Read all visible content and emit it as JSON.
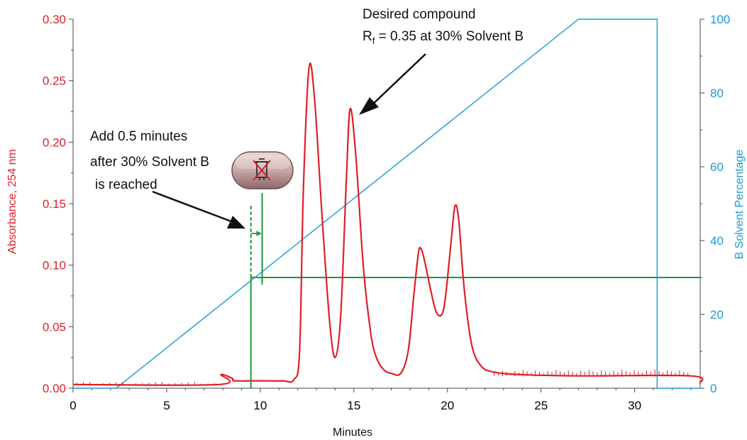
{
  "chart_data": {
    "type": "line",
    "xlabel": "Minutes",
    "ylabel_left": "Absorbance, 254 nm",
    "ylabel_right": "B Solvent Percentage",
    "xlim": [
      0,
      33.5
    ],
    "ylim_left": [
      0,
      0.3
    ],
    "ylim_right": [
      0,
      100
    ],
    "x_ticks": [
      "0",
      "5",
      "10",
      "15",
      "20",
      "25",
      "30"
    ],
    "y_left_ticks": [
      "0.00",
      "0.05",
      "0.10",
      "0.15",
      "0.20",
      "0.25",
      "0.30"
    ],
    "y_right_ticks": [
      "0",
      "20",
      "40",
      "60",
      "80",
      "100"
    ],
    "colors": {
      "absorbance": "#e01e25",
      "gradient": "#1a9ad6",
      "collection": "#1a9a3a",
      "annotation": "#111111"
    },
    "series": [
      {
        "axis": "right",
        "x": [
          0,
          2.3,
          27.0,
          31.2,
          31.2,
          33.5
        ],
        "y": [
          0,
          0,
          100,
          100,
          0,
          0
        ]
      },
      {
        "axis": "left",
        "x": [
          0,
          7.8,
          7.9,
          8.5,
          8.6,
          9.5,
          10,
          11.2,
          11.8,
          12.1,
          12.3,
          12.6,
          12.9,
          13.3,
          13.7,
          14.0,
          14.3,
          14.6,
          14.8,
          15.1,
          15.5,
          15.9,
          16.2,
          16.6,
          17.0,
          17.5,
          17.9,
          18.2,
          18.45,
          18.6,
          18.8,
          19.1,
          19.4,
          19.7,
          19.9,
          20.2,
          20.4,
          20.6,
          20.9,
          21.3,
          21.8,
          22.5,
          24.0,
          27.0,
          33.0,
          33.5
        ],
        "y": [
          0.003,
          0.003,
          0.011,
          0.008,
          0.006,
          0.006,
          0.006,
          0.006,
          0.007,
          0.03,
          0.16,
          0.26,
          0.235,
          0.14,
          0.055,
          0.025,
          0.06,
          0.17,
          0.227,
          0.19,
          0.1,
          0.045,
          0.025,
          0.015,
          0.012,
          0.012,
          0.03,
          0.075,
          0.11,
          0.113,
          0.102,
          0.08,
          0.062,
          0.06,
          0.075,
          0.12,
          0.148,
          0.137,
          0.08,
          0.035,
          0.018,
          0.013,
          0.011,
          0.01,
          0.01,
          0.004
        ]
      }
    ],
    "threshold_line": {
      "axis": "right",
      "value": 30,
      "x_from": 9.5,
      "x_to": 33.5
    },
    "collection_marker": {
      "x_reached": 9.5,
      "x_start": 10.1
    },
    "annotations": {
      "desired_line1": "Desired compound",
      "desired_line2_prefix": "R",
      "desired_line2_sub": "f",
      "desired_line2_rest": " = 0.35 at 30% Solvent B",
      "add_line1": "Add 0.5 minutes",
      "add_line2": "after 30% Solvent B",
      "add_line3": "is reached"
    }
  }
}
